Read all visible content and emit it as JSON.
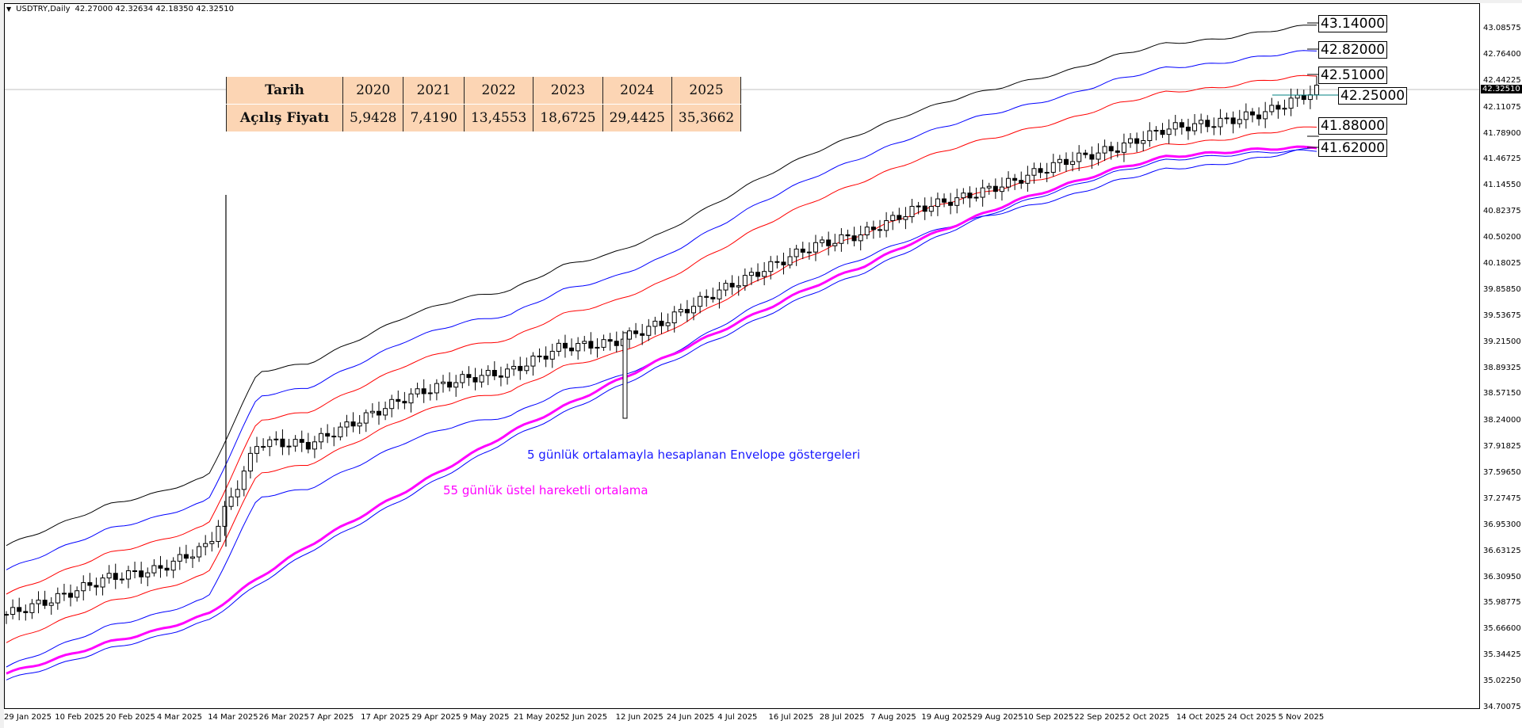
{
  "header": {
    "symbol": "USDTRY,Daily",
    "ohlc": "42.27000 42.32634 42.18350 42.32510"
  },
  "table": {
    "row_label_1": "Tarih",
    "row_label_2": "Açılış Fiyatı",
    "years": [
      "2020",
      "2021",
      "2022",
      "2023",
      "2024",
      "2025"
    ],
    "prices": [
      "5,9428",
      "7,4190",
      "13,4553",
      "18,6725",
      "29,4425",
      "35,3662"
    ],
    "bg_color": "#fcd5b4"
  },
  "annotations": {
    "envelope": "5 günlük ortalamayla hesaplanan Envelope göstergeleri",
    "ema": "55 günlük üstel hareketli ortalama",
    "envelope_color": "#1a1aff",
    "ema_color": "#ff00ff"
  },
  "level_labels": [
    "43.14000",
    "42.82000",
    "42.51000",
    "42.25000",
    "41.88000",
    "41.62000"
  ],
  "current_price": "42.32510",
  "chart_data": {
    "type": "line",
    "title": "USDTRY,Daily",
    "xlabel": "",
    "ylabel": "",
    "ylim": [
      34.70075,
      43.08575
    ],
    "grid": false,
    "y_ticks": [
      "43.08575",
      "42.76400",
      "42.44225",
      "42.11075",
      "41.78900",
      "41.46725",
      "41.14550",
      "40.82375",
      "40.50200",
      "40.18025",
      "39.85850",
      "39.53675",
      "39.21500",
      "38.89325",
      "38.57150",
      "38.24000",
      "37.91825",
      "37.59650",
      "37.27475",
      "36.95300",
      "36.63125",
      "36.30950",
      "35.98775",
      "35.66600",
      "35.34425",
      "35.02250",
      "34.70075"
    ],
    "x_ticks": [
      "29 Jan 2025",
      "10 Feb 2025",
      "20 Feb 2025",
      "4 Mar 2025",
      "14 Mar 2025",
      "26 Mar 2025",
      "7 Apr 2025",
      "17 Apr 2025",
      "29 Apr 2025",
      "9 May 2025",
      "21 May 2025",
      "2 Jun 2025",
      "12 Jun 2025",
      "24 Jun 2025",
      "4 Jul 2025",
      "16 Jul 2025",
      "28 Jul 2025",
      "7 Aug 2025",
      "19 Aug 2025",
      "29 Aug 2025",
      "10 Sep 2025",
      "22 Sep 2025",
      "2 Oct 2025",
      "14 Oct 2025",
      "24 Oct 2025",
      "5 Nov 2025"
    ],
    "series": [
      {
        "name": "Close (approx, per ~8 trading days)",
        "x": [
          "29 Jan",
          "10 Feb",
          "20 Feb",
          "4 Mar",
          "14 Mar",
          "26 Mar",
          "7 Apr",
          "17 Apr",
          "29 Apr",
          "9 May",
          "21 May",
          "2 Jun",
          "12 Jun",
          "24 Jun",
          "4 Jul",
          "16 Jul",
          "28 Jul",
          "7 Aug",
          "19 Aug",
          "29 Aug",
          "10 Sep",
          "22 Sep",
          "2 Oct",
          "14 Oct",
          "24 Oct",
          "5 Nov",
          "13 Nov"
        ],
        "values": [
          35.85,
          36.05,
          36.3,
          36.4,
          36.7,
          37.98,
          37.95,
          38.25,
          38.55,
          38.75,
          38.85,
          39.15,
          39.2,
          39.45,
          39.8,
          40.1,
          40.4,
          40.55,
          40.85,
          41.0,
          41.2,
          41.45,
          41.6,
          41.85,
          41.92,
          42.05,
          42.33
        ]
      },
      {
        "name": "55 EMA",
        "values": [
          35.12,
          35.3,
          35.5,
          35.65,
          35.85,
          36.3,
          36.7,
          37.05,
          37.4,
          37.75,
          38.1,
          38.4,
          38.7,
          39.0,
          39.3,
          39.6,
          39.9,
          40.15,
          40.45,
          40.7,
          40.95,
          41.15,
          41.35,
          41.5,
          41.55,
          41.6,
          41.62
        ]
      },
      {
        "name": "Envelope upper 3",
        "values": [
          36.7,
          36.95,
          37.2,
          37.35,
          37.55,
          38.85,
          38.95,
          39.25,
          39.55,
          39.75,
          39.85,
          40.15,
          40.3,
          40.55,
          40.9,
          41.25,
          41.55,
          41.8,
          42.05,
          42.25,
          42.4,
          42.55,
          42.75,
          42.9,
          42.95,
          43.05,
          43.14
        ]
      },
      {
        "name": "Envelope upper 2",
        "values": [
          36.4,
          36.65,
          36.9,
          37.05,
          37.25,
          38.55,
          38.65,
          38.95,
          39.25,
          39.45,
          39.55,
          39.85,
          40.0,
          40.25,
          40.6,
          40.95,
          41.25,
          41.5,
          41.75,
          41.95,
          42.1,
          42.25,
          42.45,
          42.6,
          42.65,
          42.75,
          42.82
        ]
      },
      {
        "name": "Envelope upper 1",
        "values": [
          36.1,
          36.35,
          36.6,
          36.75,
          36.95,
          38.25,
          38.35,
          38.65,
          38.95,
          39.15,
          39.25,
          39.55,
          39.7,
          39.95,
          40.3,
          40.65,
          40.95,
          41.2,
          41.45,
          41.65,
          41.8,
          41.95,
          42.15,
          42.3,
          42.35,
          42.45,
          42.51
        ]
      },
      {
        "name": "Envelope lower 1",
        "values": [
          35.5,
          35.75,
          36.0,
          36.15,
          36.35,
          37.6,
          37.7,
          38.0,
          38.3,
          38.5,
          38.6,
          38.9,
          39.05,
          39.3,
          39.65,
          40.0,
          40.3,
          40.55,
          40.8,
          41.0,
          41.15,
          41.3,
          41.5,
          41.65,
          41.7,
          41.8,
          41.88
        ]
      },
      {
        "name": "Envelope lower 2",
        "values": [
          35.2,
          35.45,
          35.7,
          35.85,
          36.05,
          37.3,
          37.4,
          37.7,
          38.0,
          38.2,
          38.3,
          38.6,
          38.75,
          39.0,
          39.35,
          39.7,
          40.0,
          40.25,
          40.5,
          40.7,
          40.85,
          41.0,
          41.2,
          41.35,
          41.4,
          41.5,
          41.62
        ]
      }
    ]
  }
}
